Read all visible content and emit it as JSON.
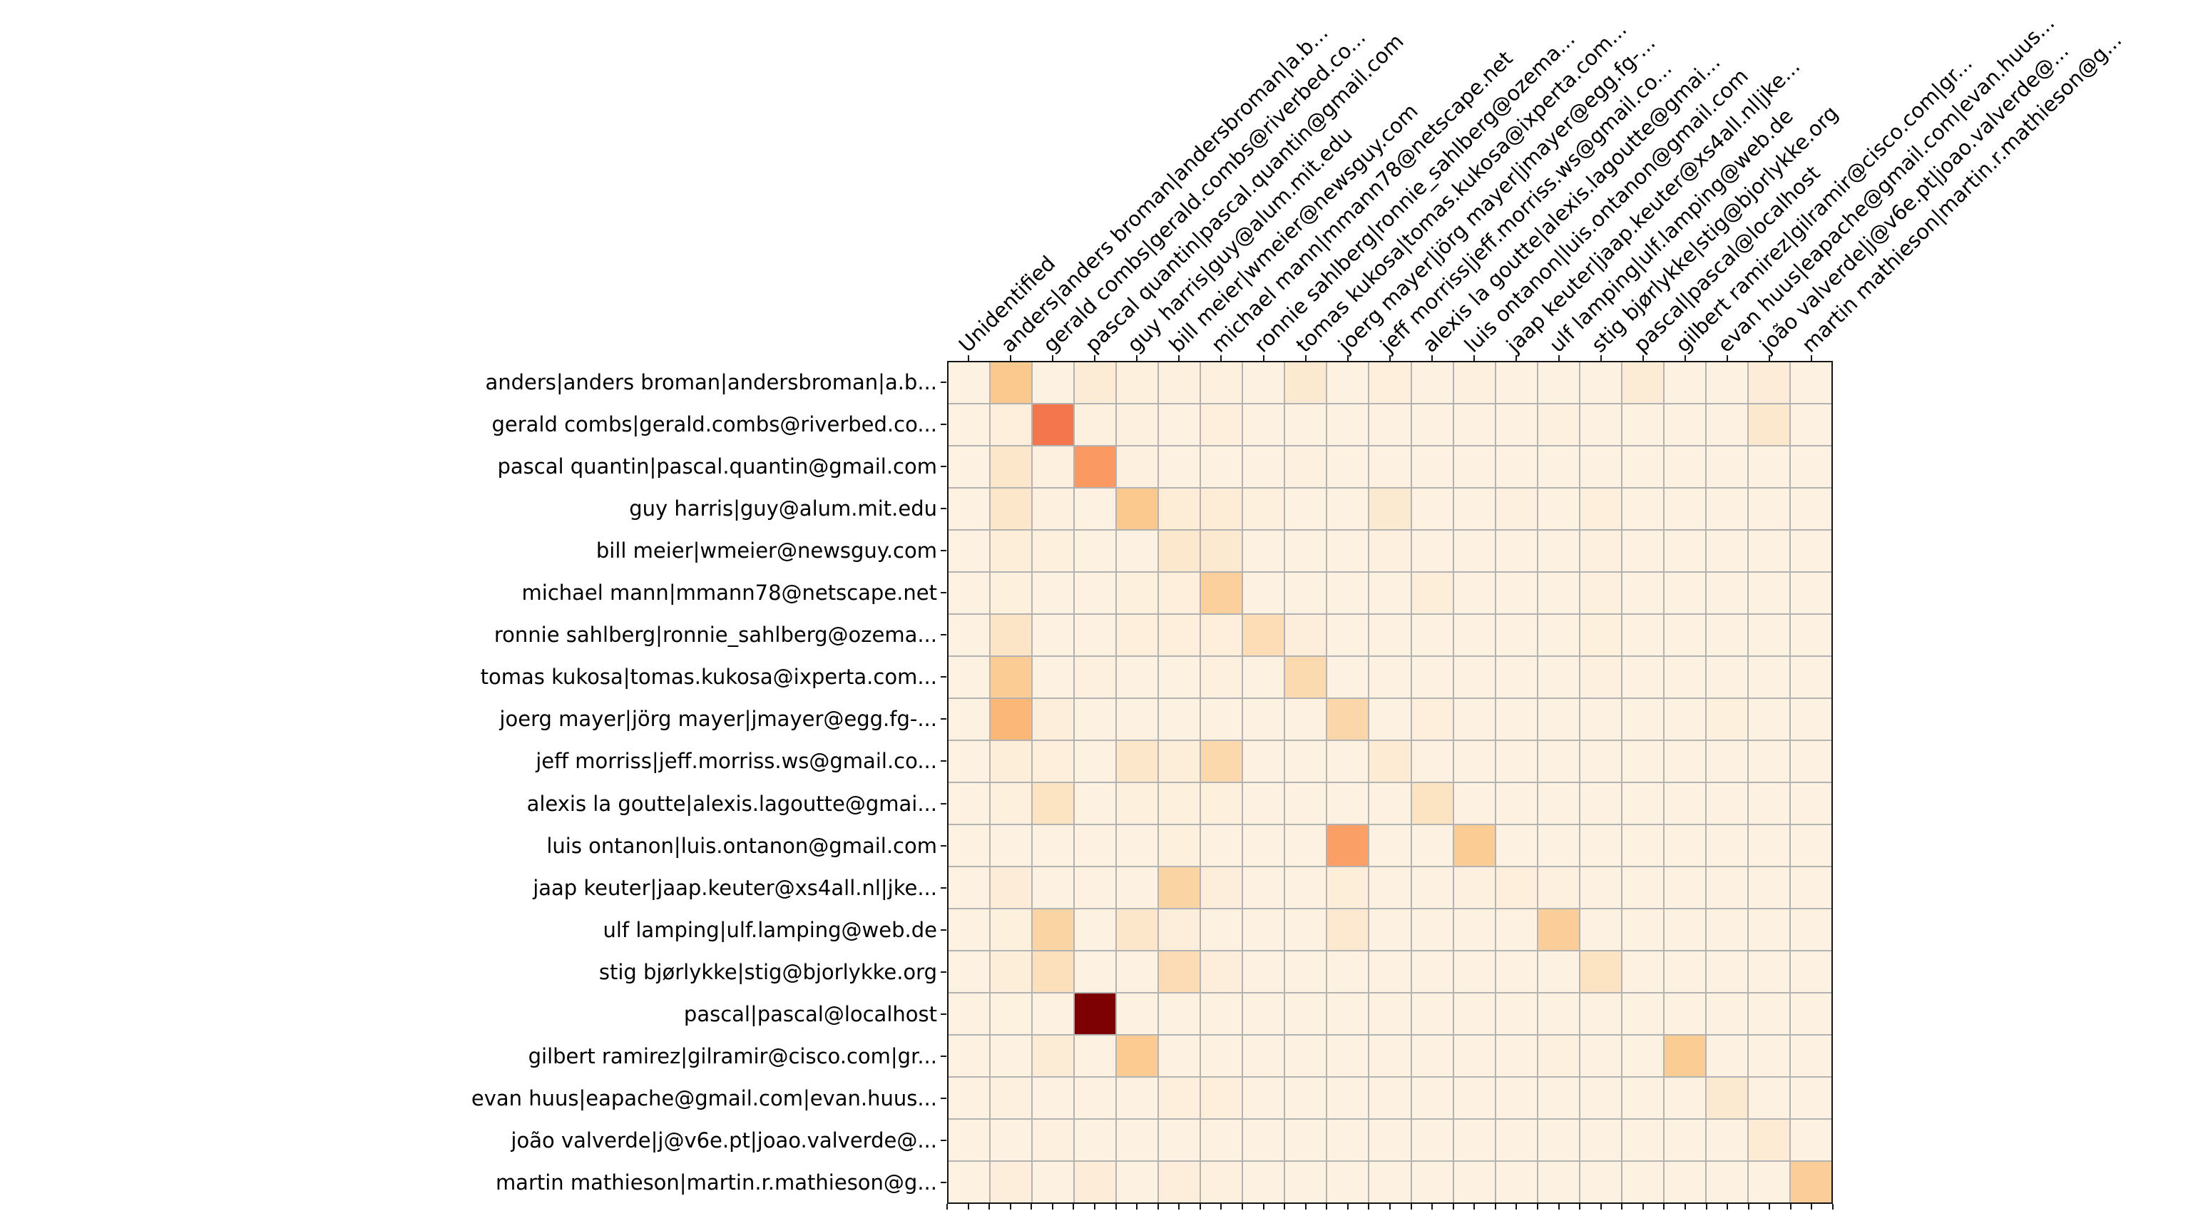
{
  "figure": {
    "background_color": "#ffffff",
    "kind": "contributor co-occurrence heatmap"
  },
  "chart_data": {
    "type": "heatmap",
    "title": "",
    "xlabel": "",
    "ylabel": "",
    "x_axis_position": "top",
    "x_tick_label_rotation_deg": 45,
    "grid_on": true,
    "grid_line_color": "#b2b2b2",
    "spine_color": "#151515",
    "tick_color": "#151515",
    "label_color": "#000000",
    "value_range": [
      0,
      1
    ],
    "colormap_name": "OrRd-like",
    "colormap_stops": [
      [
        0.0,
        "#fdf2e2"
      ],
      [
        0.1,
        "#fdeeda"
      ],
      [
        0.2,
        "#fce7ca"
      ],
      [
        0.3,
        "#fcddb6"
      ],
      [
        0.4,
        "#fbd2a0"
      ],
      [
        0.5,
        "#fbc98e"
      ],
      [
        0.6,
        "#fab273"
      ],
      [
        0.7,
        "#fa9a62"
      ],
      [
        0.8,
        "#f3764d"
      ],
      [
        0.9,
        "#c4301f"
      ],
      [
        1.0,
        "#7d0102"
      ]
    ],
    "col_labels": [
      "Unidentified",
      "anders|anders broman|andersbroman|a.b...",
      "gerald combs|gerald.combs@riverbed.co...",
      "pascal quantin|pascal.quantin@gmail.com",
      "guy harris|guy@alum.mit.edu",
      "bill meier|wmeier@newsguy.com",
      "michael mann|mmann78@netscape.net",
      "ronnie sahlberg|ronnie_sahlberg@ozema...",
      "tomas kukosa|tomas.kukosa@ixperta.com...",
      "joerg mayer|jörg mayer|jmayer@egg.fg-...",
      "jeff morriss|jeff.morriss.ws@gmail.co...",
      "alexis la goutte|alexis.lagoutte@gmai...",
      "luis ontanon|luis.ontanon@gmail.com",
      "jaap keuter|jaap.keuter@xs4all.nl|jke...",
      "ulf lamping|ulf.lamping@web.de",
      "stig bjørlykke|stig@bjorlykke.org",
      "pascal|pascal@localhost",
      "gilbert ramirez|gilramir@cisco.com|gr...",
      "evan huus|eapache@gmail.com|evan.huus...",
      "joão valverde|j@v6e.pt|joao.valverde@...",
      "martin mathieson|martin.r.mathieson@g..."
    ],
    "row_labels": [
      "anders|anders broman|andersbroman|a.b...",
      "gerald combs|gerald.combs@riverbed.co...",
      "pascal quantin|pascal.quantin@gmail.com",
      "guy harris|guy@alum.mit.edu",
      "bill meier|wmeier@newsguy.com",
      "michael mann|mmann78@netscape.net",
      "ronnie sahlberg|ronnie_sahlberg@ozema...",
      "tomas kukosa|tomas.kukosa@ixperta.com...",
      "joerg mayer|jörg mayer|jmayer@egg.fg-...",
      "jeff morriss|jeff.morriss.ws@gmail.co...",
      "alexis la goutte|alexis.lagoutte@gmai...",
      "luis ontanon|luis.ontanon@gmail.com",
      "jaap keuter|jaap.keuter@xs4all.nl|jke...",
      "ulf lamping|ulf.lamping@web.de",
      "stig bjørlykke|stig@bjorlykke.org",
      "pascal|pascal@localhost",
      "gilbert ramirez|gilramir@cisco.com|gr...",
      "evan huus|eapache@gmail.com|evan.huus...",
      "joão valverde|j@v6e.pt|joao.valverde@...",
      "martin mathieson|martin.r.mathieson@g..."
    ],
    "matrix": [
      [
        0,
        0.5,
        0,
        0.13,
        0.06,
        0.04,
        0.05,
        0,
        0.16,
        0,
        0.07,
        0,
        0.04,
        0,
        0,
        0,
        0.13,
        0,
        0,
        0.11,
        0
      ],
      [
        0,
        0.07,
        0.8,
        0.04,
        0.05,
        0,
        0.07,
        0,
        0,
        0,
        0,
        0,
        0,
        0,
        0.04,
        0,
        0,
        0,
        0,
        0.18,
        0
      ],
      [
        0,
        0.2,
        0.04,
        0.7,
        0.05,
        0,
        0,
        0,
        0.04,
        0,
        0,
        0,
        0,
        0,
        0,
        0,
        0,
        0,
        0,
        0,
        0
      ],
      [
        0,
        0.2,
        0.05,
        0,
        0.5,
        0.12,
        0.12,
        0.06,
        0,
        0,
        0.16,
        0,
        0,
        0.05,
        0,
        0.07,
        0,
        0,
        0,
        0,
        0
      ],
      [
        0,
        0.1,
        0.06,
        0,
        0,
        0.18,
        0.16,
        0,
        0,
        0,
        0.05,
        0,
        0,
        0,
        0,
        0.05,
        0,
        0,
        0,
        0,
        0
      ],
      [
        0,
        0.06,
        0,
        0,
        0.06,
        0.07,
        0.42,
        0,
        0,
        0,
        0,
        0.1,
        0,
        0,
        0,
        0.05,
        0,
        0,
        0,
        0,
        0
      ],
      [
        0,
        0.22,
        0,
        0,
        0.08,
        0.08,
        0.08,
        0.3,
        0.09,
        0,
        0,
        0,
        0,
        0,
        0,
        0.06,
        0,
        0,
        0,
        0,
        0
      ],
      [
        0,
        0.46,
        0,
        0.05,
        0,
        0,
        0.04,
        0,
        0.33,
        0,
        0,
        0,
        0,
        0,
        0,
        0.05,
        0,
        0,
        0,
        0,
        0
      ],
      [
        0,
        0.58,
        0.09,
        0,
        0,
        0,
        0,
        0,
        0,
        0.36,
        0,
        0.07,
        0,
        0,
        0,
        0,
        0,
        0,
        0.06,
        0,
        0
      ],
      [
        0,
        0.1,
        0.08,
        0,
        0.2,
        0.1,
        0.34,
        0,
        0,
        0,
        0.14,
        0,
        0,
        0,
        0,
        0,
        0,
        0,
        0,
        0,
        0
      ],
      [
        0,
        0.06,
        0.24,
        0,
        0.06,
        0.06,
        0.06,
        0,
        0,
        0,
        0,
        0.24,
        0,
        0,
        0,
        0,
        0,
        0,
        0,
        0,
        0
      ],
      [
        0,
        0,
        0,
        0,
        0,
        0.06,
        0,
        0,
        0,
        0.68,
        0,
        0,
        0.46,
        0,
        0,
        0,
        0,
        0,
        0,
        0,
        0
      ],
      [
        0,
        0.11,
        0,
        0,
        0,
        0.38,
        0.09,
        0,
        0,
        0.1,
        0,
        0,
        0.05,
        0.08,
        0.05,
        0,
        0,
        0,
        0,
        0,
        0
      ],
      [
        0,
        0.06,
        0.38,
        0,
        0.2,
        0.09,
        0,
        0,
        0,
        0.17,
        0,
        0,
        0,
        0,
        0.44,
        0,
        0,
        0,
        0,
        0,
        0
      ],
      [
        0,
        0.1,
        0.27,
        0,
        0,
        0.31,
        0.09,
        0,
        0,
        0,
        0,
        0,
        0,
        0,
        0,
        0.24,
        0,
        0,
        0,
        0,
        0
      ],
      [
        0,
        0.03,
        0,
        1.0,
        0,
        0,
        0,
        0,
        0,
        0,
        0,
        0,
        0,
        0,
        0,
        0,
        0,
        0,
        0,
        0,
        0
      ],
      [
        0,
        0,
        0.13,
        0,
        0.48,
        0,
        0,
        0,
        0,
        0,
        0,
        0,
        0,
        0,
        0.05,
        0,
        0,
        0.46,
        0,
        0,
        0
      ],
      [
        0,
        0.05,
        0,
        0,
        0,
        0.07,
        0.07,
        0,
        0,
        0,
        0,
        0,
        0,
        0,
        0,
        0,
        0,
        0,
        0.16,
        0,
        0
      ],
      [
        0,
        0,
        0.05,
        0,
        0,
        0,
        0,
        0,
        0,
        0,
        0,
        0,
        0,
        0,
        0,
        0,
        0,
        0,
        0,
        0.14,
        0
      ],
      [
        0,
        0.09,
        0,
        0.11,
        0,
        0.09,
        0.05,
        0,
        0,
        0,
        0,
        0,
        0,
        0,
        0,
        0,
        0,
        0,
        0,
        0,
        0.44
      ]
    ],
    "notable_cells": [
      {
        "row": "pascal|pascal@localhost",
        "col": "pascal quantin|pascal.quantin@gmail.com",
        "intensity": 1.0,
        "color": "#7d0102"
      },
      {
        "row": "gerald combs|gerald.combs@riverbed.co...",
        "col": "gerald combs|gerald.combs@riverbed.co...",
        "intensity": 0.8,
        "color": "#f3764d"
      },
      {
        "row": "pascal quantin|pascal.quantin@gmail.com",
        "col": "pascal quantin|pascal.quantin@gmail.com",
        "intensity": 0.7,
        "color": "#fa9a62"
      },
      {
        "row": "luis ontanon|luis.ontanon@gmail.com",
        "col": "joerg mayer|jörg mayer|jmayer@egg.fg-...",
        "intensity": 0.68,
        "color": "#fa9e68"
      }
    ],
    "legend": "none"
  }
}
